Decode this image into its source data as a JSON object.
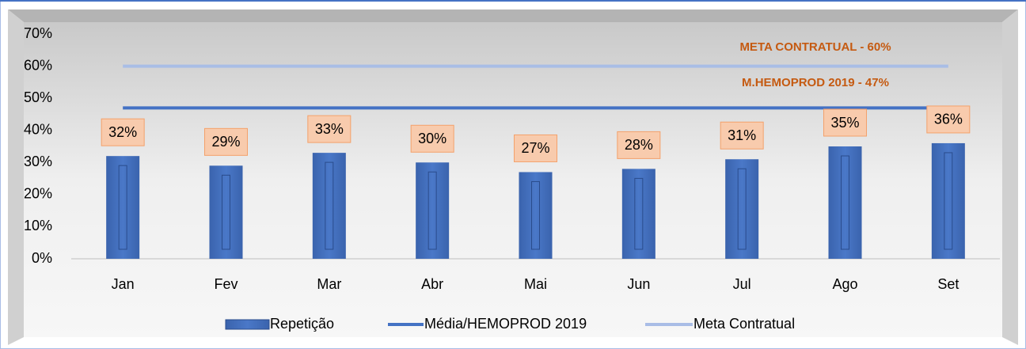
{
  "chart_data": {
    "type": "bar",
    "categories": [
      "Jan",
      "Fev",
      "Mar",
      "Abr",
      "Mai",
      "Jun",
      "Jul",
      "Ago",
      "Set"
    ],
    "series": [
      {
        "name": "Repetição",
        "type": "bar",
        "color": "#4472c4",
        "values": [
          32,
          29,
          33,
          30,
          27,
          28,
          31,
          35,
          36
        ],
        "value_labels": [
          "32%",
          "29%",
          "33%",
          "30%",
          "27%",
          "28%",
          "31%",
          "35%",
          "36%"
        ]
      },
      {
        "name": "Média/HEMOPROD 2019",
        "type": "line",
        "color": "#4472c4",
        "values": [
          47,
          47,
          47,
          47,
          47,
          47,
          47,
          47,
          47
        ]
      },
      {
        "name": "Meta Contratual",
        "type": "line",
        "color": "#a9bde6",
        "values": [
          60,
          60,
          60,
          60,
          60,
          60,
          60,
          60,
          60
        ]
      }
    ],
    "annotations": [
      {
        "text": "META CONTRATUAL  - 60%",
        "color": "#c55a11"
      },
      {
        "text": "M.HEMOPROD 2019 - 47%",
        "color": "#c55a11"
      }
    ],
    "ylim": [
      0,
      70
    ],
    "yticks": [
      {
        "value": 0,
        "label": "0%"
      },
      {
        "value": 10,
        "label": "10%"
      },
      {
        "value": 20,
        "label": "20%"
      },
      {
        "value": 30,
        "label": "30%"
      },
      {
        "value": 40,
        "label": "40%"
      },
      {
        "value": 50,
        "label": "50%"
      },
      {
        "value": 60,
        "label": "60%"
      },
      {
        "value": 70,
        "label": "70%"
      }
    ],
    "grid": false,
    "legend": "bottom"
  }
}
